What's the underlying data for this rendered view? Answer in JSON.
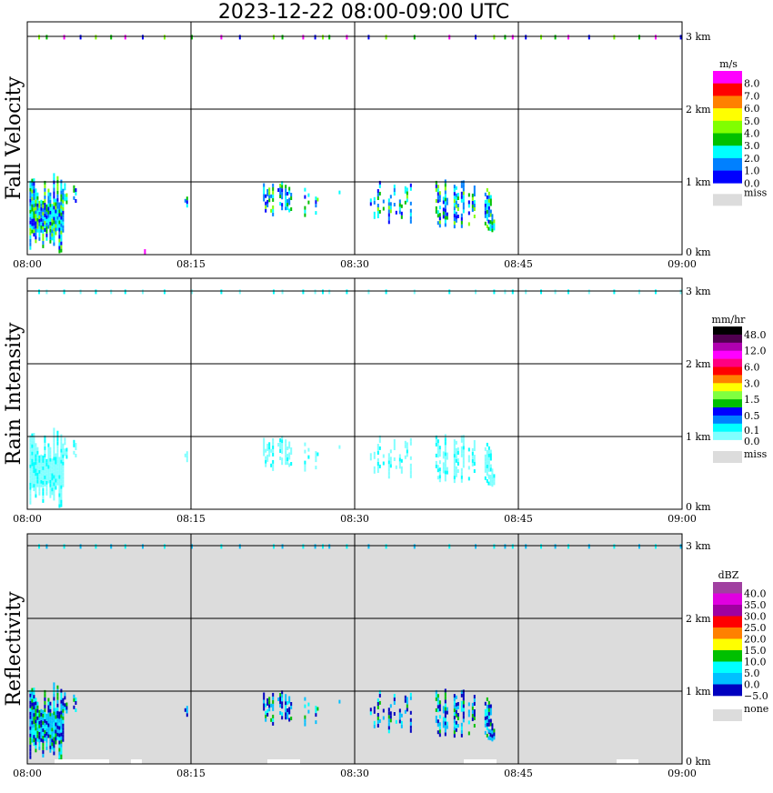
{
  "title": "2023-12-22   08:00-09:00 UTC",
  "chart_data": {
    "type": "heatmap",
    "title": "2023-12-22   08:00-09:00 UTC",
    "x_range_minutes": [
      0,
      60
    ],
    "x_ticks": [
      "08:00",
      "08:15",
      "08:30",
      "08:45",
      "09:00"
    ],
    "y_range_km": [
      0,
      3.2
    ],
    "y_ticks": [
      "0 km",
      "1 km",
      "2 km",
      "3 km"
    ],
    "grid": true,
    "echo_clusters": [
      {
        "t": [
          0.2,
          3.2
        ],
        "z": [
          0.0,
          1.1
        ],
        "density": 0.85
      },
      {
        "t": [
          3.2,
          4.6
        ],
        "z": [
          0.6,
          1.0
        ],
        "density": 0.3
      },
      {
        "t": [
          14.4,
          14.7
        ],
        "z": [
          0.6,
          0.9
        ],
        "density": 0.5
      },
      {
        "t": [
          21.6,
          24.2
        ],
        "z": [
          0.5,
          1.0
        ],
        "density": 0.55
      },
      {
        "t": [
          24.2,
          28.6
        ],
        "z": [
          0.5,
          0.95
        ],
        "density": 0.2
      },
      {
        "t": [
          31.4,
          35.2
        ],
        "z": [
          0.4,
          0.98
        ],
        "density": 0.3
      },
      {
        "t": [
          37.4,
          42.6
        ],
        "z": [
          0.35,
          1.0
        ],
        "density": 0.5
      },
      {
        "t": [
          42.2,
          42.8
        ],
        "z": [
          0.3,
          0.55
        ],
        "density": 0.6
      }
    ],
    "top_echo_minutes": [
      1,
      1.7,
      3.3,
      4.8,
      6.2,
      7.6,
      8.9,
      10.5,
      12.5,
      15,
      17.7,
      19.4,
      22.5,
      23.3,
      25.2,
      26.3,
      27,
      27.6,
      29.2,
      31.2,
      32.8,
      35.4,
      38.6,
      41,
      42.7,
      43.7,
      44.4,
      45.6,
      47,
      48.3,
      49.5,
      51.4,
      53.7,
      56,
      57.5,
      59.8
    ],
    "panels": [
      {
        "ylabel": "Fall Velocity",
        "unit": "m/s",
        "background": "#ffffff",
        "legend_colors": [
          "#ff00ff",
          "#ff0000",
          "#ff8000",
          "#ffff00",
          "#80ff00",
          "#00c000",
          "#00ffff",
          "#0080ff",
          "#0000ff"
        ],
        "legend_labels": [
          "8.0",
          "7.0",
          "6.0",
          "5.0",
          "4.0",
          "3.0",
          "2.0",
          "1.0",
          "0.0"
        ],
        "miss_label": "miss",
        "echo_colors": [
          "#0080ff",
          "#00ffff",
          "#0000ff",
          "#00ffff",
          "#0080ff",
          "#00c000",
          "#80ff00"
        ],
        "top_colors": [
          "#80ff00",
          "#00c000",
          "#ff00ff",
          "#0000ff"
        ]
      },
      {
        "ylabel": "Rain Intensity",
        "unit": "mm/hr",
        "background": "#ffffff",
        "legend_colors": [
          "#000000",
          "#500050",
          "#b000b0",
          "#ff00ff",
          "#ff0080",
          "#ff0000",
          "#ff8000",
          "#ffff00",
          "#80ff40",
          "#00c000",
          "#0000ff",
          "#0080ff",
          "#00ffff",
          "#80ffff"
        ],
        "legend_labels": [
          "48.0",
          "12.0",
          "6.0",
          "3.0",
          "1.5",
          "0.5",
          "0.1",
          "0.0"
        ],
        "miss_label": "miss",
        "echo_colors": [
          "#80ffff",
          "#80ffff",
          "#80ffff",
          "#00ffff"
        ],
        "top_colors": [
          "#00ffff",
          "#80ffff"
        ]
      },
      {
        "ylabel": "Reflectivity",
        "unit": "dBZ",
        "background": "#dcdcdc",
        "legend_colors": [
          "#a040a0",
          "#e000e0",
          "#a000a0",
          "#ff0000",
          "#ff8000",
          "#ffff00",
          "#00c000",
          "#00ffff",
          "#00c0ff",
          "#0000c0"
        ],
        "legend_labels": [
          "40.0",
          "35.0",
          "30.0",
          "25.0",
          "20.0",
          "15.0",
          "10.0",
          "5.0",
          "0.0",
          "−5.0"
        ],
        "miss_label": "none",
        "echo_colors": [
          "#0000c0",
          "#00c0ff",
          "#00ffff",
          "#0000c0",
          "#00c0ff",
          "#00c000"
        ],
        "top_colors": [
          "#00ffff",
          "#00c0ff"
        ]
      }
    ]
  }
}
